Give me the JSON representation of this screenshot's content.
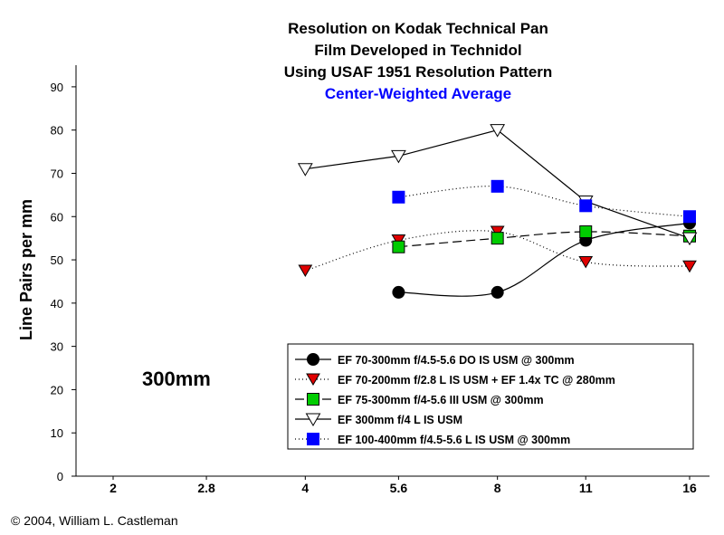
{
  "chart_data": {
    "type": "line",
    "title_lines": [
      "Resolution on Kodak Technical Pan",
      "Film Developed in Technidol",
      "Using USAF 1951 Resolution Pattern"
    ],
    "subtitle": "Center-Weighted Average",
    "ylabel": "Line Pairs per mm",
    "xlabel": "",
    "ylim": [
      0,
      95
    ],
    "yticks": [
      0,
      10,
      20,
      30,
      40,
      50,
      60,
      70,
      80,
      90
    ],
    "xscale": "log2",
    "xticks": [
      "2",
      "2.8",
      "4",
      "5.6",
      "8",
      "11",
      "16"
    ],
    "grid": false,
    "legend_position": "bottom-right",
    "annotation": "300mm",
    "series": [
      {
        "name": "EF 70-300mm f/4.5-5.6 DO IS USM @ 300mm",
        "marker": "circle",
        "color": "#000000",
        "line": "solid-curve",
        "x": [
          5.6,
          8,
          11,
          16
        ],
        "values": [
          42.5,
          42.5,
          54.5,
          58.5
        ]
      },
      {
        "name": "EF 70-200mm f/2.8 L IS USM + EF 1.4x TC @ 280mm",
        "marker": "triangle-down",
        "color": "#e00000",
        "line": "dotted",
        "x": [
          4,
          5.6,
          8,
          11,
          16
        ],
        "values": [
          47.5,
          54.5,
          56.5,
          49.5,
          48.5
        ]
      },
      {
        "name": "EF 75-300mm f/4-5.6 III USM @ 300mm",
        "marker": "square",
        "color": "#00cc00",
        "line": "dashed",
        "x": [
          5.6,
          8,
          11,
          16
        ],
        "values": [
          53,
          55,
          56.5,
          55.5
        ]
      },
      {
        "name": "EF 300mm f/4 L IS USM",
        "marker": "triangle-down-open",
        "color": "#ffffff",
        "line": "solid",
        "x": [
          4,
          5.6,
          8,
          11,
          16
        ],
        "values": [
          71,
          74,
          80,
          63.5,
          55
        ]
      },
      {
        "name": "EF 100-400mm f/4.5-5.6 L IS USM @ 300mm",
        "marker": "square",
        "color": "#0000ff",
        "line": "dotted-curve",
        "x": [
          5.6,
          8,
          11,
          16
        ],
        "values": [
          64.5,
          67,
          62.5,
          60
        ]
      }
    ]
  },
  "copyright": "© 2004, William L. Castleman",
  "colors": {
    "subtitle": "#0000ff"
  }
}
